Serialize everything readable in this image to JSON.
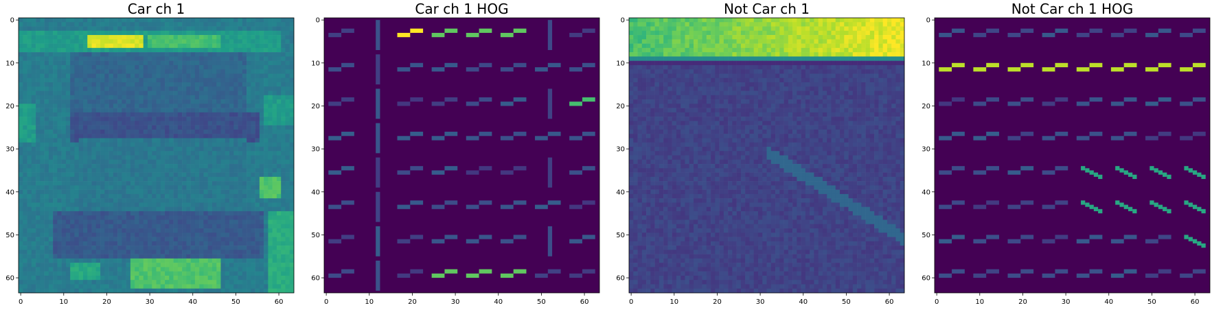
{
  "figure": {
    "background": "#ffffff",
    "colormap": "viridis"
  },
  "chart_data": [
    {
      "type": "heatmap",
      "title": "Car ch 1",
      "content": "grayscale image of vehicle rear (channel 1), viridis colormap",
      "xlim": [
        0,
        63
      ],
      "ylim": [
        63,
        0
      ],
      "xticks": [
        "0",
        "10",
        "20",
        "30",
        "40",
        "50",
        "60"
      ],
      "yticks": [
        "0",
        "10",
        "20",
        "30",
        "40",
        "50",
        "60"
      ]
    },
    {
      "type": "heatmap",
      "title": "Car ch 1 HOG",
      "content": "HOG visualization of vehicle image, 8x8 cells",
      "xlim": [
        0,
        63
      ],
      "ylim": [
        63,
        0
      ],
      "xticks": [
        "0",
        "10",
        "20",
        "30",
        "40",
        "50",
        "60"
      ],
      "yticks": [
        "0",
        "10",
        "20",
        "30",
        "40",
        "50",
        "60"
      ]
    },
    {
      "type": "heatmap",
      "title": "Not Car ch 1",
      "content": "road surface image with bright top band and diagonal lane line",
      "xlim": [
        0,
        63
      ],
      "ylim": [
        63,
        0
      ],
      "xticks": [
        "0",
        "10",
        "20",
        "30",
        "40",
        "50",
        "60"
      ],
      "yticks": [
        "0",
        "10",
        "20",
        "30",
        "40",
        "50",
        "60"
      ]
    },
    {
      "type": "heatmap",
      "title": "Not Car ch 1 HOG",
      "content": "HOG visualization of non-vehicle image, strong horizontal edges at y=11",
      "xlim": [
        0,
        63
      ],
      "ylim": [
        63,
        0
      ],
      "xticks": [
        "0",
        "10",
        "20",
        "30",
        "40",
        "50",
        "60"
      ],
      "yticks": [
        "0",
        "10",
        "20",
        "30",
        "40",
        "50",
        "60"
      ]
    }
  ]
}
